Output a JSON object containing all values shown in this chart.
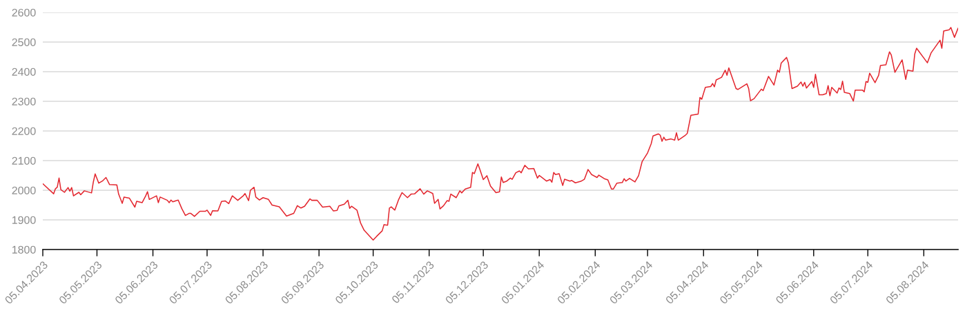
{
  "chart_data": {
    "type": "line",
    "x": [
      "2023-04-05",
      "2023-04-11",
      "2023-04-12",
      "2023-04-13",
      "2023-04-14",
      "2023-04-15",
      "2023-04-17",
      "2023-04-19",
      "2023-04-20",
      "2023-04-21",
      "2023-04-22",
      "2023-04-25",
      "2023-04-26",
      "2023-04-28",
      "2023-05-02",
      "2023-05-03",
      "2023-05-04",
      "2023-05-06",
      "2023-05-08",
      "2023-05-10",
      "2023-05-12",
      "2023-05-16",
      "2023-05-17",
      "2023-05-19",
      "2023-05-20",
      "2023-05-23",
      "2023-05-26",
      "2023-05-27",
      "2023-05-30",
      "2023-06-01",
      "2023-06-02",
      "2023-06-03",
      "2023-06-07",
      "2023-06-08",
      "2023-06-09",
      "2023-06-13",
      "2023-06-14",
      "2023-06-15",
      "2023-06-16",
      "2023-06-19",
      "2023-06-21",
      "2023-06-23",
      "2023-06-25",
      "2023-06-26",
      "2023-06-28",
      "2023-07-01",
      "2023-07-04",
      "2023-07-05",
      "2023-07-07",
      "2023-07-08",
      "2023-07-11",
      "2023-07-13",
      "2023-07-15",
      "2023-07-17",
      "2023-07-19",
      "2023-07-22",
      "2023-07-25",
      "2023-07-26",
      "2023-07-28",
      "2023-07-29",
      "2023-07-31",
      "2023-08-01",
      "2023-08-03",
      "2023-08-05",
      "2023-08-08",
      "2023-08-10",
      "2023-08-14",
      "2023-08-18",
      "2023-08-22",
      "2023-08-24",
      "2023-08-26",
      "2023-08-28",
      "2023-08-31",
      "2023-09-01",
      "2023-09-04",
      "2023-09-07",
      "2023-09-11",
      "2023-09-13",
      "2023-09-15",
      "2023-09-16",
      "2023-09-19",
      "2023-09-21",
      "2023-09-22",
      "2023-09-23",
      "2023-09-26",
      "2023-09-28",
      "2023-09-30",
      "2023-10-05",
      "2023-10-07",
      "2023-10-10",
      "2023-10-11",
      "2023-10-13",
      "2023-10-14",
      "2023-10-15",
      "2023-10-17",
      "2023-10-19",
      "2023-10-21",
      "2023-10-24",
      "2023-10-26",
      "2023-10-28",
      "2023-10-31",
      "2023-11-02",
      "2023-11-04",
      "2023-11-07",
      "2023-11-08",
      "2023-11-10",
      "2023-11-11",
      "2023-11-13",
      "2023-11-15",
      "2023-11-16",
      "2023-11-17",
      "2023-11-20",
      "2023-11-22",
      "2023-11-23",
      "2023-11-25",
      "2023-11-28",
      "2023-11-29",
      "2023-11-30",
      "2023-12-02",
      "2023-12-03",
      "2023-12-05",
      "2023-12-07",
      "2023-12-09",
      "2023-12-12",
      "2023-12-14",
      "2023-12-15",
      "2023-12-16",
      "2023-12-18",
      "2023-12-20",
      "2023-12-21",
      "2023-12-23",
      "2023-12-25",
      "2023-12-26",
      "2023-12-28",
      "2023-12-30",
      "2024-01-02",
      "2024-01-04",
      "2024-01-05",
      "2024-01-09",
      "2024-01-11",
      "2024-01-12",
      "2024-01-13",
      "2024-01-14",
      "2024-01-16",
      "2024-01-18",
      "2024-01-19",
      "2024-01-22",
      "2024-01-23",
      "2024-01-25",
      "2024-01-28",
      "2024-01-30",
      "2024-02-01",
      "2024-02-03",
      "2024-02-06",
      "2024-02-07",
      "2024-02-10",
      "2024-02-12",
      "2024-02-14",
      "2024-02-15",
      "2024-02-17",
      "2024-02-20",
      "2024-02-21",
      "2024-02-22",
      "2024-02-24",
      "2024-02-27",
      "2024-02-29",
      "2024-03-02",
      "2024-03-05",
      "2024-03-07",
      "2024-03-08",
      "2024-03-11",
      "2024-03-12",
      "2024-03-13",
      "2024-03-14",
      "2024-03-15",
      "2024-03-18",
      "2024-03-20",
      "2024-03-21",
      "2024-03-22",
      "2024-03-26",
      "2024-03-27",
      "2024-03-29",
      "2024-04-02",
      "2024-04-03",
      "2024-04-04",
      "2024-04-06",
      "2024-04-09",
      "2024-04-10",
      "2024-04-11",
      "2024-04-12",
      "2024-04-15",
      "2024-04-17",
      "2024-04-18",
      "2024-04-19",
      "2024-04-23",
      "2024-04-24",
      "2024-04-29",
      "2024-04-30",
      "2024-05-01",
      "2024-05-03",
      "2024-05-07",
      "2024-05-08",
      "2024-05-11",
      "2024-05-14",
      "2024-05-16",
      "2024-05-17",
      "2024-05-18",
      "2024-05-21",
      "2024-05-22",
      "2024-05-24",
      "2024-05-27",
      "2024-05-29",
      "2024-05-30",
      "2024-05-31",
      "2024-06-01",
      "2024-06-04",
      "2024-06-05",
      "2024-06-06",
      "2024-06-08",
      "2024-06-10",
      "2024-06-12",
      "2024-06-13",
      "2024-06-14",
      "2024-06-15",
      "2024-06-18",
      "2024-06-19",
      "2024-06-20",
      "2024-06-21",
      "2024-06-22",
      "2024-06-25",
      "2024-06-27",
      "2024-06-28",
      "2024-07-02",
      "2024-07-03",
      "2024-07-04",
      "2024-07-05",
      "2024-07-06",
      "2024-07-09",
      "2024-07-11",
      "2024-07-12",
      "2024-07-15",
      "2024-07-17",
      "2024-07-18",
      "2024-07-20",
      "2024-07-24",
      "2024-07-26",
      "2024-07-27",
      "2024-07-30",
      "2024-07-31",
      "2024-08-01",
      "2024-08-07",
      "2024-08-09",
      "2024-08-14",
      "2024-08-15",
      "2024-08-16",
      "2024-08-19",
      "2024-08-20",
      "2024-08-22",
      "2024-08-24"
    ],
    "series": [
      {
        "color": "#e3262e",
        "values": [
          2022,
          1988,
          2005,
          2010,
          2041,
          2002,
          1993,
          2009,
          1997,
          2009,
          1981,
          1993,
          1985,
          1998,
          1991,
          2028,
          2055,
          2024,
          2031,
          2043,
          2019,
          2018,
          1987,
          1956,
          1977,
          1973,
          1943,
          1963,
          1958,
          1981,
          1995,
          1969,
          1981,
          1958,
          1977,
          1966,
          1958,
          1967,
          1961,
          1967,
          1938,
          1915,
          1922,
          1922,
          1912,
          1929,
          1929,
          1933,
          1915,
          1931,
          1930,
          1962,
          1964,
          1955,
          1981,
          1966,
          1981,
          1989,
          1965,
          2000,
          2010,
          1977,
          1967,
          1975,
          1969,
          1950,
          1944,
          1913,
          1922,
          1948,
          1940,
          1946,
          1971,
          1966,
          1966,
          1943,
          1946,
          1930,
          1932,
          1947,
          1953,
          1966,
          1939,
          1946,
          1933,
          1890,
          1865,
          1832,
          1845,
          1863,
          1884,
          1882,
          1940,
          1944,
          1933,
          1967,
          1992,
          1975,
          1987,
          1988,
          2005,
          1987,
          1998,
          1989,
          1956,
          1969,
          1937,
          1948,
          1965,
          1963,
          1987,
          1975,
          1998,
          1991,
          2004,
          2010,
          2060,
          2056,
          2089,
          2072,
          2036,
          2049,
          2014,
          1992,
          1995,
          2045,
          2026,
          2031,
          2041,
          2037,
          2059,
          2065,
          2059,
          2084,
          2072,
          2073,
          2041,
          2050,
          2031,
          2036,
          2027,
          2060,
          2053,
          2056,
          2016,
          2037,
          2031,
          2033,
          2025,
          2030,
          2037,
          2070,
          2053,
          2043,
          2051,
          2039,
          2035,
          2004,
          2004,
          2024,
          2026,
          2039,
          2031,
          2040,
          2028,
          2049,
          2097,
          2126,
          2157,
          2183,
          2190,
          2186,
          2165,
          2179,
          2169,
          2173,
          2169,
          2194,
          2169,
          2186,
          2192,
          2253,
          2257,
          2313,
          2307,
          2347,
          2350,
          2360,
          2349,
          2372,
          2381,
          2405,
          2388,
          2413,
          2343,
          2340,
          2359,
          2343,
          2302,
          2309,
          2341,
          2336,
          2384,
          2355,
          2405,
          2398,
          2429,
          2448,
          2429,
          2343,
          2351,
          2365,
          2351,
          2364,
          2345,
          2367,
          2347,
          2391,
          2322,
          2322,
          2326,
          2353,
          2319,
          2347,
          2328,
          2345,
          2340,
          2368,
          2330,
          2326,
          2301,
          2338,
          2338,
          2332,
          2367,
          2364,
          2395,
          2363,
          2388,
          2421,
          2423,
          2467,
          2456,
          2398,
          2440,
          2374,
          2405,
          2402,
          2460,
          2479,
          2430,
          2463,
          2506,
          2479,
          2537,
          2541,
          2549,
          2516,
          2547
        ]
      }
    ],
    "xlim": [
      "2023-04-05",
      "2024-08-24"
    ],
    "xticks": [
      {
        "value": "2023-04-05",
        "label": "05.04.2023"
      },
      {
        "value": "2023-05-05",
        "label": "05.05.2023"
      },
      {
        "value": "2023-06-05",
        "label": "05.06.2023"
      },
      {
        "value": "2023-07-05",
        "label": "05.07.2023"
      },
      {
        "value": "2023-08-05",
        "label": "05.08.2023"
      },
      {
        "value": "2023-09-05",
        "label": "05.09.2023"
      },
      {
        "value": "2023-10-05",
        "label": "05.10.2023"
      },
      {
        "value": "2023-11-05",
        "label": "05.11.2023"
      },
      {
        "value": "2023-12-05",
        "label": "05.12.2023"
      },
      {
        "value": "2024-01-05",
        "label": "05.01.2024"
      },
      {
        "value": "2024-02-05",
        "label": "05.02.2024"
      },
      {
        "value": "2024-03-05",
        "label": "05.03.2024"
      },
      {
        "value": "2024-04-05",
        "label": "05.04.2024"
      },
      {
        "value": "2024-05-05",
        "label": "05.05.2024"
      },
      {
        "value": "2024-06-05",
        "label": "05.06.2024"
      },
      {
        "value": "2024-07-05",
        "label": "05.07.2024"
      },
      {
        "value": "2024-08-05",
        "label": "05.08.2024"
      }
    ],
    "ylim": [
      1800,
      2600
    ],
    "yticks": [
      1800,
      1900,
      2000,
      2100,
      2200,
      2300,
      2400,
      2500,
      2600
    ],
    "grid": "y"
  }
}
